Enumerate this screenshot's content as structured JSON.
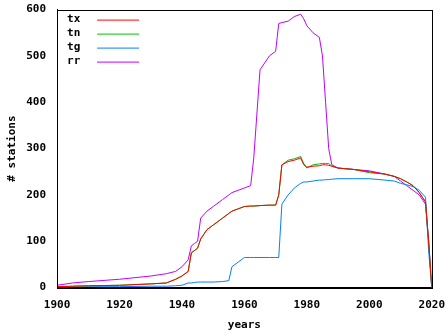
{
  "chart_data": {
    "type": "line",
    "x_label": "years",
    "y_label": "# stations",
    "x": [
      1900,
      1905,
      1910,
      1920,
      1930,
      1935,
      1938,
      1940,
      1942,
      1943,
      1944,
      1945,
      1946,
      1948,
      1950,
      1953,
      1955,
      1956,
      1958,
      1960,
      1962,
      1963,
      1965,
      1968,
      1970,
      1971,
      1972,
      1974,
      1976,
      1978,
      1979,
      1980,
      1982,
      1984,
      1985,
      1986,
      1987,
      1988,
      1990,
      1995,
      2000,
      2005,
      2008,
      2010,
      2012,
      2014,
      2016,
      2018,
      2019,
      2020
    ],
    "series": [
      {
        "name": "tx",
        "color": "#ff0000",
        "values": [
          2,
          3,
          4,
          5,
          8,
          10,
          18,
          25,
          35,
          75,
          80,
          85,
          105,
          125,
          135,
          150,
          160,
          165,
          170,
          175,
          176,
          176,
          177,
          178,
          178,
          200,
          265,
          272,
          275,
          280,
          265,
          260,
          262,
          263,
          265,
          265,
          264,
          262,
          258,
          255,
          250,
          245,
          240,
          235,
          228,
          220,
          205,
          185,
          100,
          0
        ]
      },
      {
        "name": "tn",
        "color": "#00c000",
        "values": [
          2,
          3,
          4,
          5,
          8,
          10,
          18,
          25,
          35,
          75,
          80,
          85,
          105,
          125,
          135,
          150,
          160,
          165,
          170,
          175,
          176,
          176,
          177,
          178,
          178,
          200,
          265,
          275,
          278,
          283,
          268,
          258,
          265,
          267,
          268,
          268,
          268,
          262,
          258,
          255,
          248,
          245,
          240,
          235,
          228,
          220,
          205,
          185,
          100,
          0
        ]
      },
      {
        "name": "tg",
        "color": "#0080ff",
        "values": [
          1,
          1,
          2,
          2,
          3,
          3,
          4,
          5,
          10,
          10,
          11,
          12,
          12,
          12,
          12,
          13,
          15,
          45,
          55,
          65,
          65,
          65,
          65,
          65,
          65,
          65,
          180,
          200,
          215,
          225,
          228,
          228,
          230,
          232,
          232,
          233,
          233,
          234,
          235,
          235,
          235,
          232,
          230,
          225,
          222,
          218,
          210,
          195,
          80,
          0
        ]
      },
      {
        "name": "rr",
        "color": "#c000ff",
        "values": [
          5,
          10,
          13,
          18,
          25,
          30,
          35,
          45,
          60,
          90,
          95,
          100,
          150,
          165,
          175,
          190,
          200,
          205,
          210,
          215,
          220,
          280,
          470,
          500,
          510,
          570,
          572,
          575,
          585,
          590,
          580,
          565,
          550,
          540,
          500,
          400,
          300,
          265,
          258,
          255,
          252,
          245,
          240,
          230,
          220,
          210,
          200,
          180,
          100,
          0
        ]
      }
    ],
    "xlim": [
      1900,
      2020
    ],
    "xticks": [
      1900,
      1920,
      1940,
      1960,
      1980,
      2000,
      2020
    ],
    "ylim": [
      0,
      600
    ],
    "yticks": [
      0,
      100,
      200,
      300,
      400,
      500,
      600
    ],
    "grid": false,
    "legend": "top-left"
  }
}
